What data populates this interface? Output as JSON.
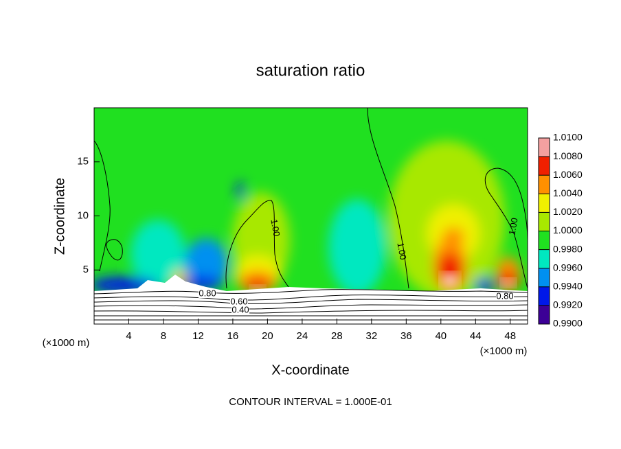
{
  "chart_data": {
    "type": "contour",
    "title": "saturation ratio",
    "x_label": "X-coordinate",
    "y_label": "Z-coordinate",
    "x_unit": "(×1000 m)",
    "y_unit": "(×1000 m)",
    "footer": "CONTOUR INTERVAL = 1.000E-01",
    "xlim": [
      0,
      50
    ],
    "xticks": [
      4,
      8,
      12,
      16,
      20,
      24,
      28,
      32,
      36,
      40,
      44,
      48
    ],
    "ylim": [
      0,
      20
    ],
    "yticks": [
      5,
      10,
      15
    ],
    "colorbar": {
      "levels": [
        {
          "value": 0.99,
          "label": "0.9900"
        },
        {
          "value": 0.992,
          "label": "0.9920"
        },
        {
          "value": 0.994,
          "label": "0.9940"
        },
        {
          "value": 0.996,
          "label": "0.9960"
        },
        {
          "value": 0.998,
          "label": "0.9980"
        },
        {
          "value": 1.0,
          "label": "1.0000"
        },
        {
          "value": 1.002,
          "label": "1.0020"
        },
        {
          "value": 1.004,
          "label": "1.0040"
        },
        {
          "value": 1.006,
          "label": "1.0060"
        },
        {
          "value": 1.008,
          "label": "1.0080"
        },
        {
          "value": 1.01,
          "label": "1.0100"
        }
      ],
      "colors": [
        "#3c0096",
        "#0018e8",
        "#0090f0",
        "#00e8c0",
        "#20e020",
        "#a8e800",
        "#f0f000",
        "#ff9000",
        "#f02000",
        "#f4a0a0"
      ]
    },
    "contour_labels": [
      {
        "value": 1,
        "label": "1.00"
      },
      {
        "value": 1,
        "label": "1.00"
      },
      {
        "value": 1,
        "label": "1.00"
      },
      {
        "value": 0.8,
        "label": "0.80"
      },
      {
        "value": 0.6,
        "label": "0.60"
      },
      {
        "value": 0.4,
        "label": "0.40"
      },
      {
        "value": 0.8,
        "label": "0.80"
      }
    ]
  }
}
